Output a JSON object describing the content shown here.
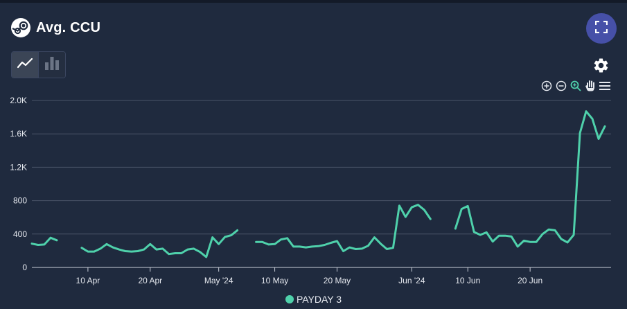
{
  "header": {
    "title": "Avg. CCU"
  },
  "icons": {
    "logo": "steam-logo-icon",
    "fullscreen": "fullscreen-icon",
    "line_chart": "line-chart-icon",
    "bar_chart": "bar-chart-icon",
    "settings": "gear-icon",
    "zoom_in": "zoom-in-icon",
    "zoom_out": "zoom-out-icon",
    "zoom_select": "zoom-select-icon",
    "pan": "pan-hand-icon",
    "menu": "menu-icon"
  },
  "colors": {
    "background": "#1f2a3e",
    "series": "#4fd1ab",
    "accent_button": "#4650a8",
    "grid": "#4a5468"
  },
  "chart_data": {
    "type": "line",
    "title": "Avg. CCU",
    "xlabel": "",
    "ylabel": "",
    "ylim": [
      0,
      2000
    ],
    "grid": true,
    "legend_position": "bottom-center",
    "x_range": [
      "2024-04-01",
      "2024-07-03"
    ],
    "y_ticks": [
      {
        "value": 0,
        "label": "0"
      },
      {
        "value": 400,
        "label": "400"
      },
      {
        "value": 800,
        "label": "800"
      },
      {
        "value": 1200,
        "label": "1.2K"
      },
      {
        "value": 1600,
        "label": "1.6K"
      },
      {
        "value": 2000,
        "label": "2.0K"
      }
    ],
    "x_ticks": [
      {
        "date": "2024-04-10",
        "label": "10 Apr"
      },
      {
        "date": "2024-04-20",
        "label": "20 Apr"
      },
      {
        "date": "2024-05-01",
        "label": "May '24"
      },
      {
        "date": "2024-05-10",
        "label": "10 May"
      },
      {
        "date": "2024-05-20",
        "label": "20 May"
      },
      {
        "date": "2024-06-01",
        "label": "Jun '24"
      },
      {
        "date": "2024-06-10",
        "label": "10 Jun"
      },
      {
        "date": "2024-06-20",
        "label": "20 Jun"
      }
    ],
    "series": [
      {
        "name": "PAYDAY 3",
        "color": "#4fd1ab",
        "points": [
          [
            "2024-04-01",
            285
          ],
          [
            "2024-04-02",
            270
          ],
          [
            "2024-04-03",
            275
          ],
          [
            "2024-04-04",
            355
          ],
          [
            "2024-04-05",
            325
          ],
          [
            "2024-04-06",
            null
          ],
          [
            "2024-04-07",
            null
          ],
          [
            "2024-04-08",
            null
          ],
          [
            "2024-04-09",
            235
          ],
          [
            "2024-04-10",
            190
          ],
          [
            "2024-04-11",
            190
          ],
          [
            "2024-04-12",
            225
          ],
          [
            "2024-04-13",
            280
          ],
          [
            "2024-04-14",
            240
          ],
          [
            "2024-04-15",
            215
          ],
          [
            "2024-04-16",
            195
          ],
          [
            "2024-04-17",
            190
          ],
          [
            "2024-04-18",
            195
          ],
          [
            "2024-04-19",
            215
          ],
          [
            "2024-04-20",
            280
          ],
          [
            "2024-04-21",
            215
          ],
          [
            "2024-04-22",
            225
          ],
          [
            "2024-04-23",
            160
          ],
          [
            "2024-04-24",
            170
          ],
          [
            "2024-04-25",
            170
          ],
          [
            "2024-04-26",
            215
          ],
          [
            "2024-04-27",
            225
          ],
          [
            "2024-04-28",
            185
          ],
          [
            "2024-04-29",
            125
          ],
          [
            "2024-04-30",
            360
          ],
          [
            "2024-05-01",
            280
          ],
          [
            "2024-05-02",
            365
          ],
          [
            "2024-05-03",
            385
          ],
          [
            "2024-05-04",
            445
          ],
          [
            "2024-05-05",
            null
          ],
          [
            "2024-05-06",
            null
          ],
          [
            "2024-05-07",
            305
          ],
          [
            "2024-05-08",
            305
          ],
          [
            "2024-05-09",
            275
          ],
          [
            "2024-05-10",
            280
          ],
          [
            "2024-05-11",
            335
          ],
          [
            "2024-05-12",
            350
          ],
          [
            "2024-05-13",
            250
          ],
          [
            "2024-05-14",
            250
          ],
          [
            "2024-05-15",
            240
          ],
          [
            "2024-05-16",
            250
          ],
          [
            "2024-05-17",
            255
          ],
          [
            "2024-05-18",
            270
          ],
          [
            "2024-05-19",
            295
          ],
          [
            "2024-05-20",
            315
          ],
          [
            "2024-05-21",
            195
          ],
          [
            "2024-05-22",
            240
          ],
          [
            "2024-05-23",
            220
          ],
          [
            "2024-05-24",
            225
          ],
          [
            "2024-05-25",
            260
          ],
          [
            "2024-05-26",
            360
          ],
          [
            "2024-05-27",
            285
          ],
          [
            "2024-05-28",
            220
          ],
          [
            "2024-05-29",
            235
          ],
          [
            "2024-05-30",
            740
          ],
          [
            "2024-05-31",
            605
          ],
          [
            "2024-06-01",
            720
          ],
          [
            "2024-06-02",
            750
          ],
          [
            "2024-06-03",
            690
          ],
          [
            "2024-06-04",
            580
          ],
          [
            "2024-06-05",
            null
          ],
          [
            "2024-06-06",
            null
          ],
          [
            "2024-06-07",
            null
          ],
          [
            "2024-06-08",
            465
          ],
          [
            "2024-06-09",
            700
          ],
          [
            "2024-06-10",
            735
          ],
          [
            "2024-06-11",
            425
          ],
          [
            "2024-06-12",
            390
          ],
          [
            "2024-06-13",
            420
          ],
          [
            "2024-06-14",
            310
          ],
          [
            "2024-06-15",
            380
          ],
          [
            "2024-06-16",
            380
          ],
          [
            "2024-06-17",
            370
          ],
          [
            "2024-06-18",
            250
          ],
          [
            "2024-06-19",
            320
          ],
          [
            "2024-06-20",
            305
          ],
          [
            "2024-06-21",
            305
          ],
          [
            "2024-06-22",
            400
          ],
          [
            "2024-06-23",
            455
          ],
          [
            "2024-06-24",
            445
          ],
          [
            "2024-06-25",
            340
          ],
          [
            "2024-06-26",
            300
          ],
          [
            "2024-06-27",
            390
          ],
          [
            "2024-06-28",
            1610
          ],
          [
            "2024-06-29",
            1870
          ],
          [
            "2024-06-30",
            1780
          ],
          [
            "2024-07-01",
            1540
          ],
          [
            "2024-07-02",
            1690
          ]
        ]
      }
    ]
  }
}
